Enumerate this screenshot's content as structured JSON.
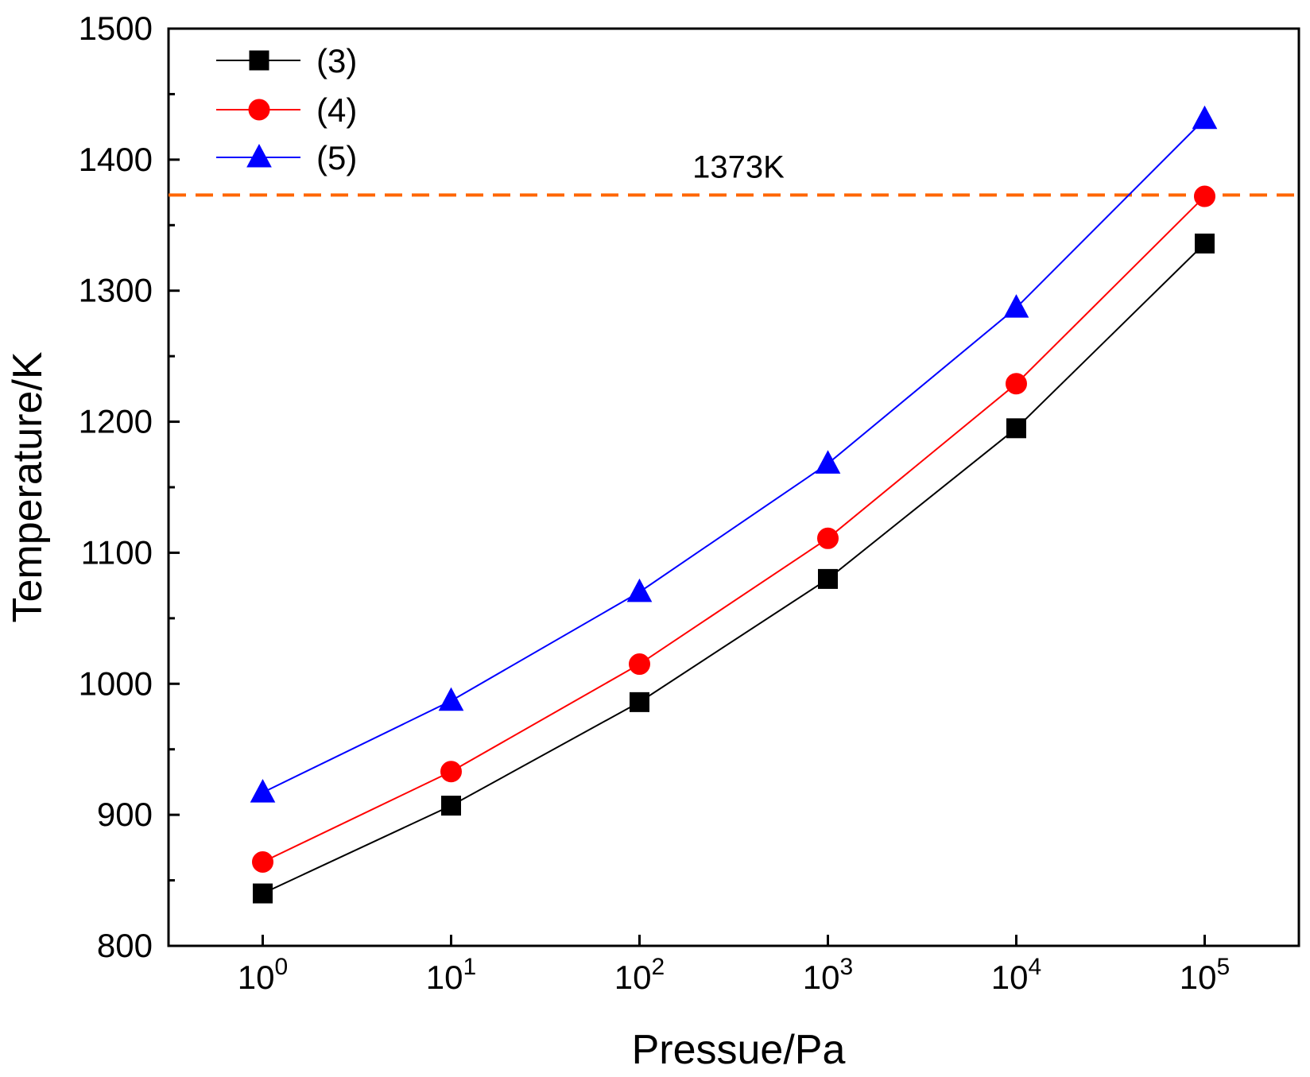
{
  "chart_data": {
    "type": "line",
    "title": "",
    "xlabel": "Pressue/Pa",
    "ylabel": "Temperature/K",
    "x_scale": "log",
    "x": [
      1,
      10,
      100,
      1000,
      10000,
      100000
    ],
    "x_tick_labels": [
      {
        "base": "10",
        "exp": "0"
      },
      {
        "base": "10",
        "exp": "1"
      },
      {
        "base": "10",
        "exp": "2"
      },
      {
        "base": "10",
        "exp": "3"
      },
      {
        "base": "10",
        "exp": "4"
      },
      {
        "base": "10",
        "exp": "5"
      }
    ],
    "xlim_log10": [
      -0.5,
      5.5
    ],
    "ylim": [
      800,
      1500
    ],
    "y_ticks": [
      "800",
      "900",
      "1000",
      "1100",
      "1200",
      "1300",
      "1400",
      "1500"
    ],
    "y_major_ticks": [
      800,
      900,
      1000,
      1100,
      1200,
      1300,
      1400,
      1500
    ],
    "y_minor_ticks": [
      850,
      950,
      1050,
      1150,
      1250,
      1350,
      1450
    ],
    "grid": false,
    "legend": {
      "position": "top-left",
      "entries": [
        "(3)",
        "(4)",
        "(5)"
      ]
    },
    "series": [
      {
        "name": "(3)",
        "marker": "square",
        "color": "#000000",
        "values": [
          840,
          907,
          986,
          1080,
          1195,
          1336
        ]
      },
      {
        "name": "(4)",
        "marker": "circle",
        "color": "#ff0000",
        "values": [
          864,
          933,
          1015,
          1111,
          1229,
          1372
        ]
      },
      {
        "name": "(5)",
        "marker": "triangle",
        "color": "#0000ff",
        "values": [
          917,
          987,
          1070,
          1168,
          1287,
          1431
        ]
      }
    ],
    "reference_lines": [
      {
        "label": "1373K",
        "value": 1373,
        "style": "dashed",
        "color": "#ff6600"
      }
    ]
  }
}
